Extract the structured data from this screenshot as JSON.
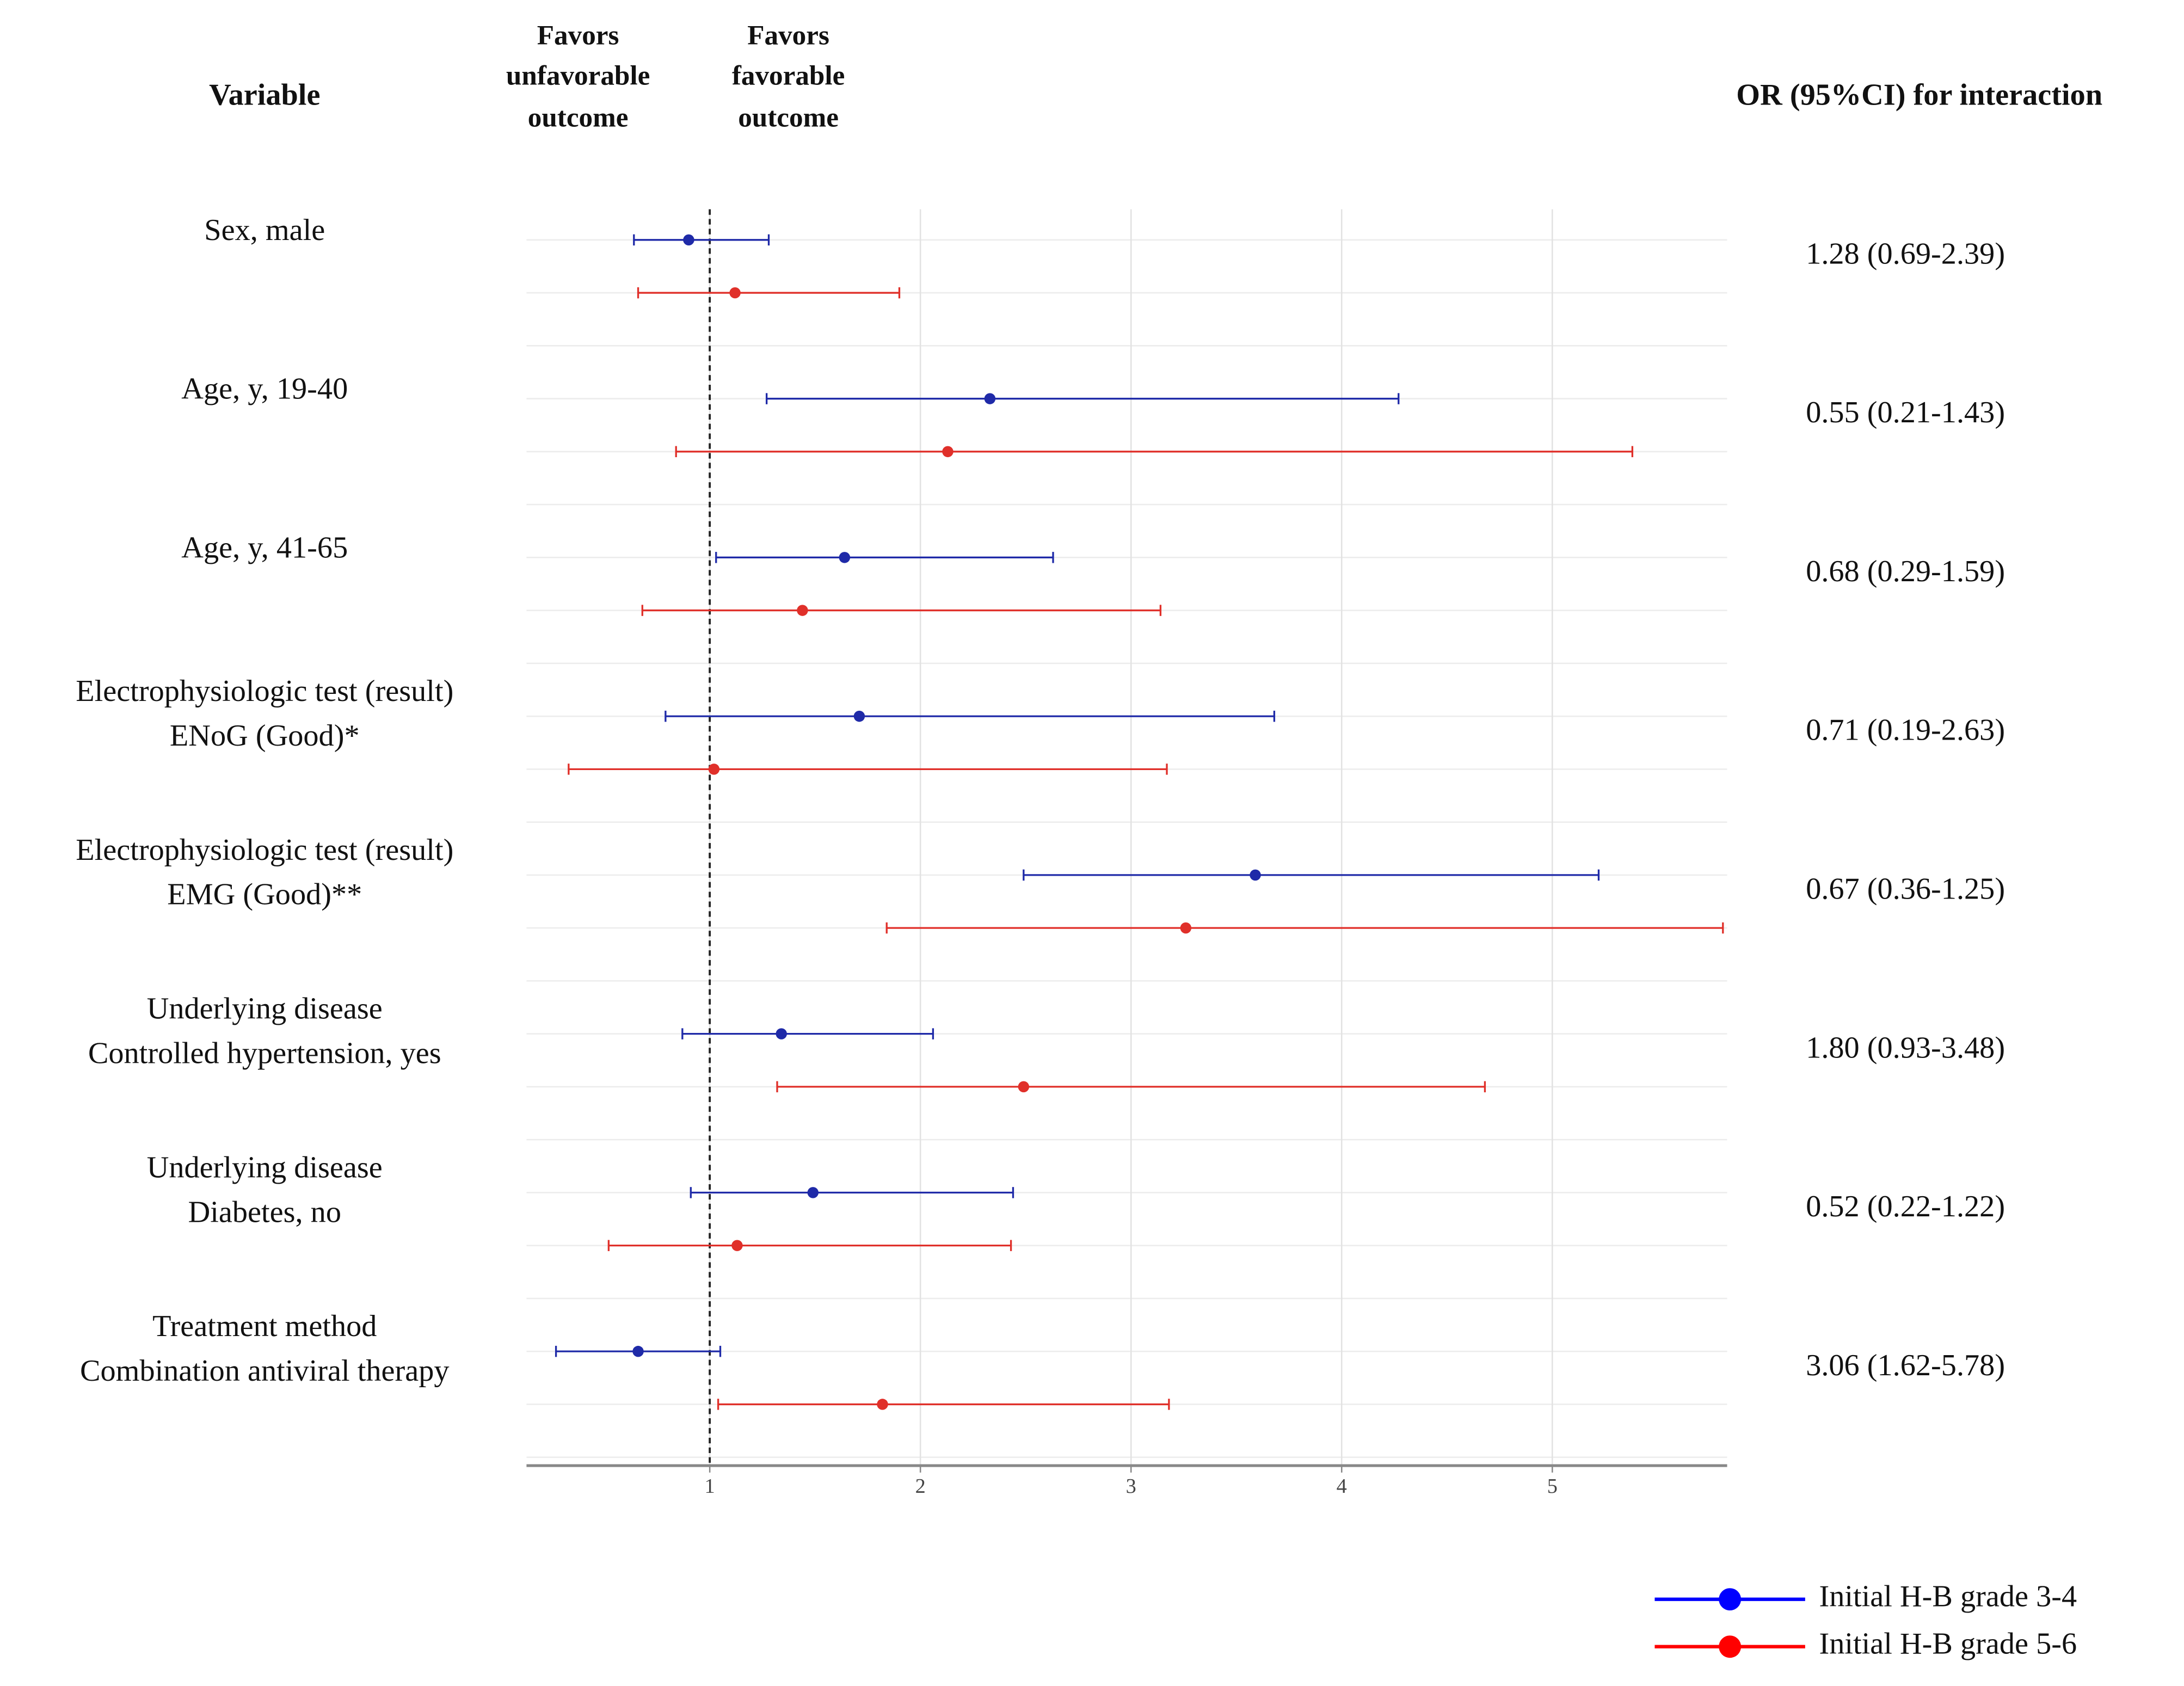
{
  "chart_data": {
    "type": "forest",
    "headers": {
      "variable": "Variable",
      "left": [
        "Favors",
        "unfavorable",
        "outcome"
      ],
      "right": [
        "Favors",
        "favorable",
        "outcome"
      ],
      "or": "OR (95%CI) for interaction"
    },
    "categories": [
      [
        "Sex, male"
      ],
      [
        "Age, y, 19-40"
      ],
      [
        "Age, y, 41-65"
      ],
      [
        "Electrophysiologic test (result)",
        "ENoG (Good)*"
      ],
      [
        "Electrophysiologic test (result)",
        "EMG (Good)**"
      ],
      [
        "Underlying disease",
        "Controlled hypertension, yes"
      ],
      [
        "Underlying disease",
        "Diabetes, no"
      ],
      [
        "Treatment method",
        "Combination antiviral therapy"
      ]
    ],
    "or_labels": [
      "1.28 (0.69-2.39)",
      "0.55 (0.21-1.43)",
      "0.68 (0.29-1.59)",
      "0.71 (0.19-2.63)",
      "0.67 (0.36-1.25)",
      "1.80 (0.93-3.48)",
      "0.52 (0.22-1.22)",
      "3.06 (1.62-5.78)"
    ],
    "series": [
      {
        "name": "Initial H-B grade 3-4",
        "color": "#1f2aa8",
        "legend_color": "#0000ff",
        "values": [
          0.9,
          2.33,
          1.64,
          1.71,
          3.59,
          1.34,
          1.49,
          0.66
        ],
        "lower": [
          0.64,
          1.27,
          1.03,
          0.79,
          2.49,
          0.87,
          0.91,
          0.27
        ],
        "upper": [
          1.28,
          4.27,
          2.63,
          3.68,
          5.22,
          2.06,
          2.44,
          1.05
        ]
      },
      {
        "name": "Initial H-B grade 5-6",
        "color": "#e0302a",
        "legend_color": "#ff0000",
        "values": [
          1.12,
          2.13,
          1.44,
          1.02,
          3.26,
          2.49,
          1.13,
          1.82
        ],
        "lower": [
          0.66,
          0.84,
          0.68,
          0.33,
          1.84,
          1.32,
          0.52,
          1.04
        ],
        "upper": [
          1.9,
          5.38,
          3.14,
          3.17,
          5.81,
          4.68,
          2.43,
          3.18
        ]
      }
    ],
    "xlim": [
      0.13,
      5.83
    ],
    "xticks": [
      1,
      2,
      3,
      4,
      5
    ],
    "reference_line": 1,
    "grid": true,
    "legend": "bottom-right"
  }
}
